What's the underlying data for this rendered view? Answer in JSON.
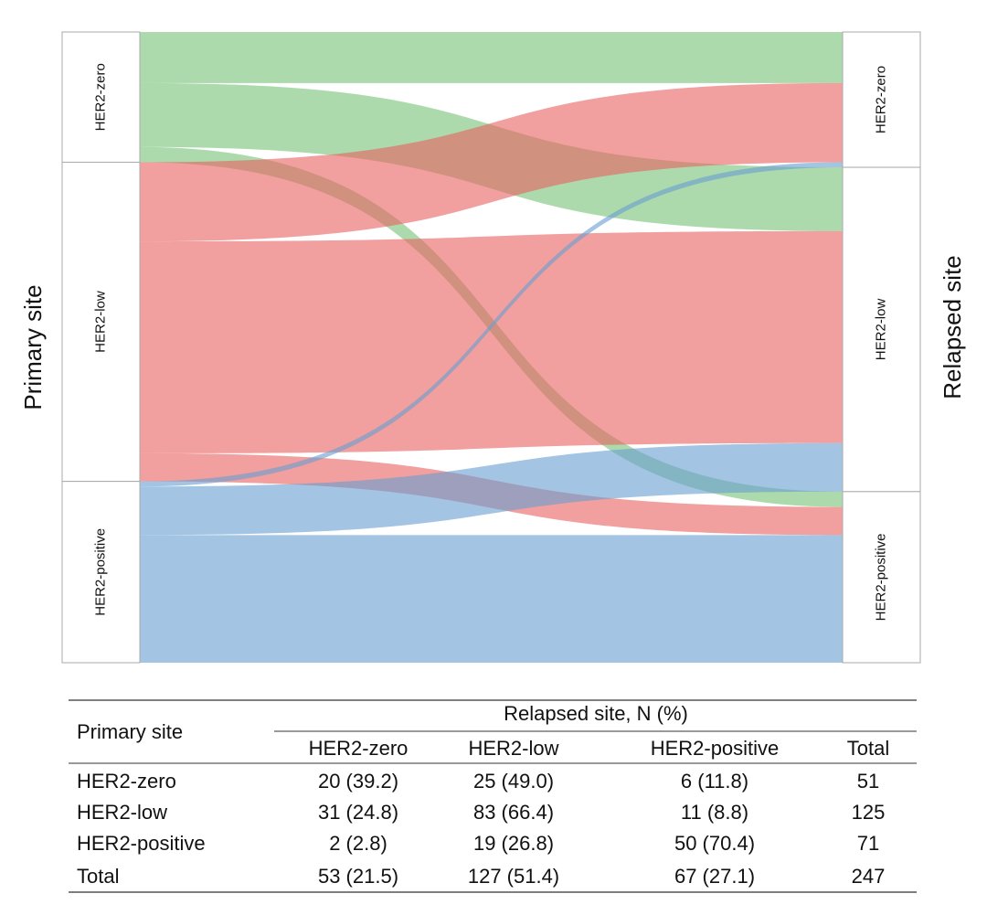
{
  "chart_data": {
    "type": "alluvial",
    "y_label": "Primary site",
    "y2_label": "Relapsed site",
    "sources": [
      "HER2-zero",
      "HER2-low",
      "HER2-positive"
    ],
    "targets": [
      "HER2-zero",
      "HER2-low",
      "HER2-positive"
    ],
    "flows": [
      [
        20,
        25,
        6
      ],
      [
        31,
        83,
        11
      ],
      [
        2,
        19,
        50
      ]
    ],
    "colors": [
      "#79c479",
      "#e86464",
      "#6b9fd0"
    ]
  },
  "table": {
    "header": "Primary site",
    "spanner": "Relapsed site, N (%)",
    "columns": [
      "HER2-zero",
      "HER2-low",
      "HER2-positive",
      "Total"
    ],
    "rows": [
      [
        "HER2-zero",
        "20 (39.2)",
        "25 (49.0)",
        "6 (11.8)",
        "51"
      ],
      [
        "HER2-low",
        "31 (24.8)",
        "83 (66.4)",
        "11 (8.8)",
        "125"
      ],
      [
        "HER2-positive",
        "2 (2.8)",
        "19 (26.8)",
        "50 (70.4)",
        "71"
      ],
      [
        "Total",
        "53 (21.5)",
        "127 (51.4)",
        "67 (27.1)",
        "247"
      ]
    ]
  }
}
